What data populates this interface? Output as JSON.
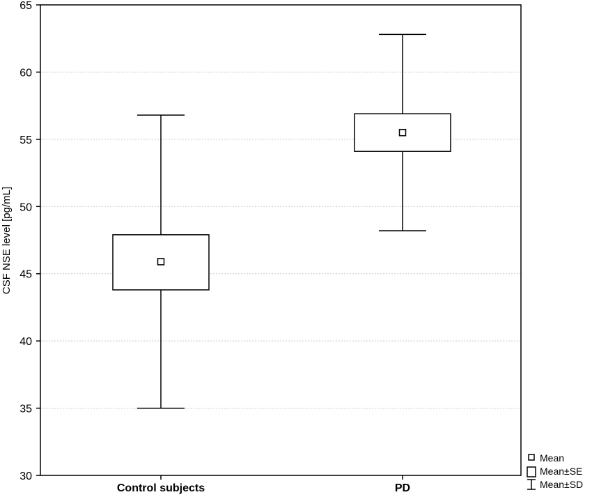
{
  "chart_data": {
    "type": "box",
    "title": "",
    "xlabel": "",
    "ylabel": "CSF NSE level [pg/mL]",
    "ylim": [
      30,
      65
    ],
    "yticks": [
      30,
      35,
      40,
      45,
      50,
      55,
      60,
      65
    ],
    "grid": true,
    "categories": [
      "Control subjects",
      "PD"
    ],
    "groups": [
      {
        "category": "Control subjects",
        "mean": 45.9,
        "se_low": 43.8,
        "se_high": 47.9,
        "sd_low": 35.0,
        "sd_high": 56.8
      },
      {
        "category": "PD",
        "mean": 55.5,
        "se_low": 54.1,
        "se_high": 56.9,
        "sd_low": 48.2,
        "sd_high": 62.8
      }
    ],
    "legend": {
      "placement": "bottom-right",
      "entries": [
        "Mean",
        "Mean±SE",
        "Mean±SD"
      ]
    }
  }
}
